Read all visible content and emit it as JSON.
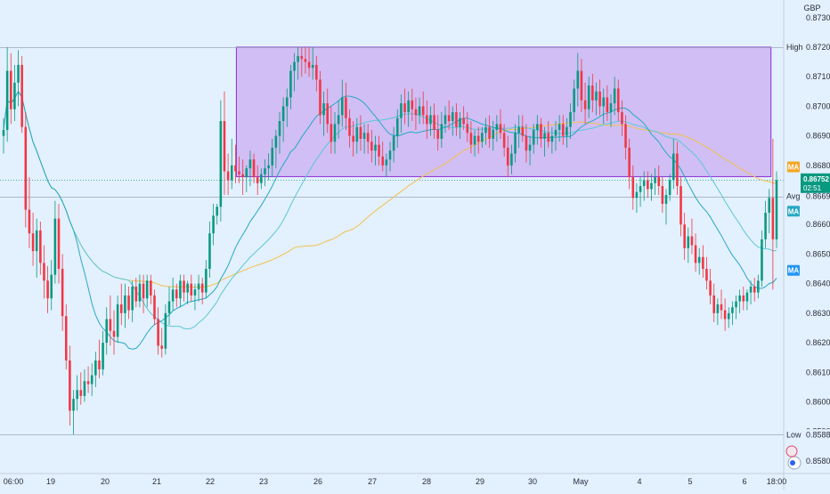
{
  "chart_data": {
    "type": "candlestick",
    "currency": "GBP",
    "xaxis": {
      "ticks": [
        "06:00",
        "19",
        "20",
        "21",
        "22",
        "23",
        "26",
        "27",
        "28",
        "29",
        "30",
        "May",
        "4",
        "5",
        "6",
        "18:00"
      ]
    },
    "yaxis": {
      "range": [
        0.8575,
        0.8737
      ],
      "ticks": [
        "0.87300",
        "0.87200",
        "0.87100",
        "0.87000",
        "0.86900",
        "0.86800",
        "0.86700",
        "0.86600",
        "0.86500",
        "0.86400",
        "0.86300",
        "0.86200",
        "0.86100",
        "0.86000",
        "0.85900",
        "0.85800"
      ]
    },
    "levels": {
      "high": {
        "label": "High",
        "value": "0.87200",
        "price": 0.872
      },
      "avg": {
        "label": "Avg",
        "value": "0.86695",
        "price": 0.86695
      },
      "low": {
        "label": "Low",
        "value": "0.85889",
        "price": 0.85889
      },
      "last": {
        "value": "0.86752",
        "countdown": "02:51",
        "price": 0.86752
      }
    },
    "ma_badges": [
      {
        "label": "MA",
        "price": 0.86795,
        "color": "#f5a623"
      },
      {
        "label": "MA",
        "price": 0.86645,
        "color": "#26a9c4"
      },
      {
        "label": "MA",
        "price": 0.86445,
        "color": "#2196f3"
      }
    ],
    "range_box": {
      "from_index": 63,
      "to_index": 208,
      "top": 0.872,
      "bottom": 0.86762
    },
    "colors": {
      "up": "#089981",
      "down": "#f23645",
      "ma_fast": "#26a9c4",
      "ma_mid": "#5bc8d6",
      "ma_slow": "#f2c14e",
      "box_fill": "#c9aef0",
      "box_edge": "#8e2fd6"
    },
    "ohlc": [
      [
        0.869,
        0.8696,
        0.8684,
        0.8692
      ],
      [
        0.8692,
        0.872,
        0.8688,
        0.8712
      ],
      [
        0.8712,
        0.8718,
        0.8694,
        0.8699
      ],
      [
        0.8699,
        0.8714,
        0.8695,
        0.8708
      ],
      [
        0.8708,
        0.8719,
        0.87,
        0.8714
      ],
      [
        0.8714,
        0.8717,
        0.8691,
        0.8693
      ],
      [
        0.8693,
        0.8698,
        0.8659,
        0.8665
      ],
      [
        0.8665,
        0.8676,
        0.8652,
        0.8657
      ],
      [
        0.8657,
        0.8664,
        0.8646,
        0.8651
      ],
      [
        0.8651,
        0.8662,
        0.8642,
        0.8658
      ],
      [
        0.8658,
        0.8661,
        0.8643,
        0.8647
      ],
      [
        0.8647,
        0.8653,
        0.8635,
        0.8641
      ],
      [
        0.8641,
        0.8646,
        0.863,
        0.8635
      ],
      [
        0.8635,
        0.8648,
        0.8631,
        0.8643
      ],
      [
        0.8643,
        0.8668,
        0.864,
        0.8662
      ],
      [
        0.8662,
        0.8667,
        0.864,
        0.8645
      ],
      [
        0.8645,
        0.865,
        0.8624,
        0.8629
      ],
      [
        0.8629,
        0.8633,
        0.8611,
        0.8614
      ],
      [
        0.8614,
        0.8619,
        0.8592,
        0.8597
      ],
      [
        0.8597,
        0.8604,
        0.8589,
        0.8601
      ],
      [
        0.8601,
        0.8609,
        0.8597,
        0.8604
      ],
      [
        0.8604,
        0.861,
        0.8599,
        0.8602
      ],
      [
        0.8602,
        0.8611,
        0.86,
        0.8607
      ],
      [
        0.8607,
        0.8612,
        0.8603,
        0.8606
      ],
      [
        0.8606,
        0.8613,
        0.8602,
        0.8609
      ],
      [
        0.8609,
        0.8617,
        0.8605,
        0.8614
      ],
      [
        0.8614,
        0.8621,
        0.8608,
        0.8611
      ],
      [
        0.8611,
        0.8624,
        0.8609,
        0.862
      ],
      [
        0.862,
        0.8632,
        0.8616,
        0.8628
      ],
      [
        0.8628,
        0.8636,
        0.8619,
        0.8624
      ],
      [
        0.8624,
        0.8631,
        0.8616,
        0.8622
      ],
      [
        0.8622,
        0.8636,
        0.862,
        0.8633
      ],
      [
        0.8633,
        0.864,
        0.8626,
        0.863
      ],
      [
        0.863,
        0.864,
        0.8625,
        0.8636
      ],
      [
        0.8636,
        0.8639,
        0.8628,
        0.8631
      ],
      [
        0.8631,
        0.8641,
        0.8627,
        0.8639
      ],
      [
        0.8639,
        0.8642,
        0.8632,
        0.8634
      ],
      [
        0.8634,
        0.8643,
        0.8632,
        0.864
      ],
      [
        0.864,
        0.8643,
        0.863,
        0.8635
      ],
      [
        0.8635,
        0.8643,
        0.8632,
        0.8641
      ],
      [
        0.8641,
        0.8643,
        0.8633,
        0.8636
      ],
      [
        0.8636,
        0.8638,
        0.8626,
        0.8628
      ],
      [
        0.8628,
        0.8632,
        0.8616,
        0.8619
      ],
      [
        0.8619,
        0.8625,
        0.8615,
        0.8618
      ],
      [
        0.8618,
        0.8633,
        0.8616,
        0.863
      ],
      [
        0.863,
        0.8639,
        0.8626,
        0.8634
      ],
      [
        0.8634,
        0.8642,
        0.8631,
        0.8638
      ],
      [
        0.8638,
        0.864,
        0.8632,
        0.8635
      ],
      [
        0.8635,
        0.8643,
        0.8632,
        0.8641
      ],
      [
        0.8641,
        0.8643,
        0.8634,
        0.8637
      ],
      [
        0.8637,
        0.8641,
        0.8633,
        0.864
      ],
      [
        0.864,
        0.8643,
        0.8634,
        0.8636
      ],
      [
        0.8636,
        0.864,
        0.8631,
        0.8638
      ],
      [
        0.8638,
        0.8643,
        0.8634,
        0.864
      ],
      [
        0.864,
        0.8642,
        0.8633,
        0.8637
      ],
      [
        0.8637,
        0.8648,
        0.8635,
        0.8645
      ],
      [
        0.8645,
        0.8661,
        0.8642,
        0.8657
      ],
      [
        0.8657,
        0.8667,
        0.8653,
        0.8663
      ],
      [
        0.8663,
        0.8667,
        0.866,
        0.8666
      ],
      [
        0.8666,
        0.8702,
        0.8661,
        0.8695
      ],
      [
        0.8695,
        0.8705,
        0.867,
        0.8678
      ],
      [
        0.8678,
        0.8684,
        0.867,
        0.8675
      ],
      [
        0.8675,
        0.8689,
        0.8672,
        0.868
      ],
      [
        0.868,
        0.8687,
        0.8674,
        0.8678
      ],
      [
        0.8678,
        0.8683,
        0.8674,
        0.8677
      ],
      [
        0.8677,
        0.8682,
        0.867,
        0.8676
      ],
      [
        0.8676,
        0.868,
        0.8671,
        0.8679
      ],
      [
        0.8679,
        0.8685,
        0.8673,
        0.8682
      ],
      [
        0.8682,
        0.8684,
        0.8674,
        0.8676
      ],
      [
        0.8676,
        0.868,
        0.867,
        0.8674
      ],
      [
        0.8674,
        0.8679,
        0.8672,
        0.8677
      ],
      [
        0.8677,
        0.8682,
        0.8673,
        0.8679
      ],
      [
        0.8679,
        0.8684,
        0.8675,
        0.868
      ],
      [
        0.868,
        0.8689,
        0.8676,
        0.8686
      ],
      [
        0.8686,
        0.8692,
        0.8679,
        0.869
      ],
      [
        0.869,
        0.8698,
        0.8684,
        0.8695
      ],
      [
        0.8695,
        0.8703,
        0.8688,
        0.87
      ],
      [
        0.87,
        0.8706,
        0.8693,
        0.8703
      ],
      [
        0.8703,
        0.8714,
        0.8699,
        0.8712
      ],
      [
        0.8712,
        0.8718,
        0.8705,
        0.8715
      ],
      [
        0.8715,
        0.872,
        0.8709,
        0.8717
      ],
      [
        0.8717,
        0.872,
        0.871,
        0.8716
      ],
      [
        0.8716,
        0.872,
        0.8711,
        0.8715
      ],
      [
        0.8715,
        0.872,
        0.871,
        0.8713
      ],
      [
        0.8713,
        0.872,
        0.8709,
        0.8714
      ],
      [
        0.8714,
        0.8717,
        0.8705,
        0.8709
      ],
      [
        0.8709,
        0.8712,
        0.8694,
        0.8697
      ],
      [
        0.8697,
        0.8705,
        0.869,
        0.8701
      ],
      [
        0.8701,
        0.8706,
        0.8691,
        0.8694
      ],
      [
        0.8694,
        0.87,
        0.8684,
        0.8688
      ],
      [
        0.8688,
        0.8698,
        0.8684,
        0.8694
      ],
      [
        0.8694,
        0.8702,
        0.8689,
        0.8697
      ],
      [
        0.8697,
        0.8709,
        0.8693,
        0.8703
      ],
      [
        0.8703,
        0.8708,
        0.8692,
        0.8696
      ],
      [
        0.8696,
        0.8699,
        0.8686,
        0.869
      ],
      [
        0.869,
        0.8695,
        0.8683,
        0.8688
      ],
      [
        0.8688,
        0.8696,
        0.8684,
        0.8693
      ],
      [
        0.8693,
        0.8697,
        0.8685,
        0.8689
      ],
      [
        0.8689,
        0.8694,
        0.8684,
        0.8691
      ],
      [
        0.8691,
        0.8694,
        0.8684,
        0.8688
      ],
      [
        0.8688,
        0.8692,
        0.8681,
        0.8685
      ],
      [
        0.8685,
        0.869,
        0.868,
        0.8687
      ],
      [
        0.8687,
        0.869,
        0.868,
        0.8683
      ],
      [
        0.8683,
        0.8688,
        0.8678,
        0.868
      ],
      [
        0.868,
        0.8684,
        0.8676,
        0.8682
      ],
      [
        0.8682,
        0.8688,
        0.8678,
        0.8685
      ],
      [
        0.8685,
        0.8693,
        0.8681,
        0.869
      ],
      [
        0.869,
        0.8699,
        0.8686,
        0.8696
      ],
      [
        0.8696,
        0.8704,
        0.8691,
        0.8701
      ],
      [
        0.8701,
        0.8706,
        0.8694,
        0.8698
      ],
      [
        0.8698,
        0.8705,
        0.8693,
        0.8702
      ],
      [
        0.8702,
        0.8706,
        0.8695,
        0.8699
      ],
      [
        0.8699,
        0.8703,
        0.8692,
        0.8697
      ],
      [
        0.8697,
        0.8703,
        0.8694,
        0.87
      ],
      [
        0.87,
        0.8705,
        0.8694,
        0.8697
      ],
      [
        0.8697,
        0.8702,
        0.8689,
        0.8694
      ],
      [
        0.8694,
        0.87,
        0.869,
        0.8697
      ],
      [
        0.8697,
        0.8701,
        0.8689,
        0.8692
      ],
      [
        0.8692,
        0.8697,
        0.8685,
        0.8689
      ],
      [
        0.8689,
        0.8698,
        0.8686,
        0.8694
      ],
      [
        0.8694,
        0.87,
        0.8691,
        0.8697
      ],
      [
        0.8697,
        0.8702,
        0.8692,
        0.8695
      ],
      [
        0.8695,
        0.87,
        0.869,
        0.8698
      ],
      [
        0.8698,
        0.8701,
        0.869,
        0.8693
      ],
      [
        0.8693,
        0.8698,
        0.8689,
        0.8696
      ],
      [
        0.8696,
        0.87,
        0.8692,
        0.8694
      ],
      [
        0.8694,
        0.8698,
        0.8688,
        0.8691
      ],
      [
        0.8691,
        0.8695,
        0.8684,
        0.8687
      ],
      [
        0.8687,
        0.8692,
        0.8683,
        0.869
      ],
      [
        0.869,
        0.8693,
        0.8684,
        0.8688
      ],
      [
        0.8688,
        0.8693,
        0.8686,
        0.8691
      ],
      [
        0.8691,
        0.8696,
        0.8687,
        0.8693
      ],
      [
        0.8693,
        0.8697,
        0.8686,
        0.8689
      ],
      [
        0.8689,
        0.8695,
        0.8685,
        0.8692
      ],
      [
        0.8692,
        0.8697,
        0.8688,
        0.8694
      ],
      [
        0.8694,
        0.8699,
        0.8689,
        0.8691
      ],
      [
        0.8691,
        0.8694,
        0.8683,
        0.8686
      ],
      [
        0.8686,
        0.869,
        0.8676,
        0.868
      ],
      [
        0.868,
        0.8687,
        0.8677,
        0.8684
      ],
      [
        0.8684,
        0.8694,
        0.8681,
        0.8691
      ],
      [
        0.8691,
        0.8697,
        0.8686,
        0.8693
      ],
      [
        0.8693,
        0.8697,
        0.8688,
        0.869
      ],
      [
        0.869,
        0.8694,
        0.8681,
        0.8685
      ],
      [
        0.8685,
        0.869,
        0.868,
        0.8687
      ],
      [
        0.8687,
        0.8694,
        0.8684,
        0.8692
      ],
      [
        0.8692,
        0.8697,
        0.8687,
        0.8694
      ],
      [
        0.8694,
        0.8696,
        0.8686,
        0.8689
      ],
      [
        0.8689,
        0.8693,
        0.8683,
        0.8691
      ],
      [
        0.8691,
        0.8695,
        0.8686,
        0.8688
      ],
      [
        0.8688,
        0.8693,
        0.8684,
        0.869
      ],
      [
        0.869,
        0.8695,
        0.8685,
        0.8692
      ],
      [
        0.8692,
        0.8697,
        0.8688,
        0.8694
      ],
      [
        0.8694,
        0.8697,
        0.8687,
        0.869
      ],
      [
        0.869,
        0.8696,
        0.8686,
        0.8693
      ],
      [
        0.8693,
        0.8701,
        0.8689,
        0.8698
      ],
      [
        0.8698,
        0.8709,
        0.8695,
        0.8706
      ],
      [
        0.8706,
        0.8718,
        0.87,
        0.8712
      ],
      [
        0.8712,
        0.8716,
        0.8698,
        0.8702
      ],
      [
        0.8702,
        0.8708,
        0.8694,
        0.8699
      ],
      [
        0.8699,
        0.871,
        0.8696,
        0.8707
      ],
      [
        0.8707,
        0.8711,
        0.8698,
        0.8702
      ],
      [
        0.8702,
        0.8708,
        0.8697,
        0.8705
      ],
      [
        0.8705,
        0.8709,
        0.8697,
        0.87
      ],
      [
        0.87,
        0.8706,
        0.8694,
        0.8703
      ],
      [
        0.8703,
        0.8707,
        0.8695,
        0.8698
      ],
      [
        0.8698,
        0.8704,
        0.8693,
        0.8701
      ],
      [
        0.8701,
        0.871,
        0.8697,
        0.8706
      ],
      [
        0.8706,
        0.8709,
        0.8695,
        0.8698
      ],
      [
        0.8698,
        0.8702,
        0.869,
        0.8694
      ],
      [
        0.8694,
        0.8697,
        0.8682,
        0.8686
      ],
      [
        0.8686,
        0.8689,
        0.8672,
        0.8676
      ],
      [
        0.8676,
        0.868,
        0.8665,
        0.8669
      ],
      [
        0.8669,
        0.8674,
        0.8664,
        0.8671
      ],
      [
        0.8671,
        0.8676,
        0.8666,
        0.8673
      ],
      [
        0.8673,
        0.8678,
        0.8668,
        0.8675
      ],
      [
        0.8675,
        0.8678,
        0.8669,
        0.8672
      ],
      [
        0.8672,
        0.8677,
        0.8668,
        0.8674
      ],
      [
        0.8674,
        0.8679,
        0.867,
        0.8676
      ],
      [
        0.8676,
        0.868,
        0.867,
        0.8673
      ],
      [
        0.8673,
        0.8676,
        0.8664,
        0.8667
      ],
      [
        0.8667,
        0.8672,
        0.866,
        0.867
      ],
      [
        0.867,
        0.8677,
        0.8668,
        0.8675
      ],
      [
        0.8675,
        0.8689,
        0.8672,
        0.8684
      ],
      [
        0.8684,
        0.8688,
        0.867,
        0.8673
      ],
      [
        0.8673,
        0.8676,
        0.8656,
        0.866
      ],
      [
        0.866,
        0.8664,
        0.8648,
        0.8652
      ],
      [
        0.8652,
        0.8659,
        0.8647,
        0.8656
      ],
      [
        0.8656,
        0.8662,
        0.865,
        0.8653
      ],
      [
        0.8653,
        0.8657,
        0.8644,
        0.8647
      ],
      [
        0.8647,
        0.8652,
        0.8643,
        0.8649
      ],
      [
        0.8649,
        0.8653,
        0.8642,
        0.8645
      ],
      [
        0.8645,
        0.8649,
        0.8638,
        0.8641
      ],
      [
        0.8641,
        0.8645,
        0.8633,
        0.8636
      ],
      [
        0.8636,
        0.864,
        0.8627,
        0.863
      ],
      [
        0.863,
        0.8635,
        0.8626,
        0.8633
      ],
      [
        0.8633,
        0.8638,
        0.8628,
        0.8631
      ],
      [
        0.8631,
        0.8635,
        0.8624,
        0.8628
      ],
      [
        0.8628,
        0.8632,
        0.8625,
        0.863
      ],
      [
        0.863,
        0.8634,
        0.8626,
        0.8632
      ],
      [
        0.8632,
        0.8636,
        0.8628,
        0.8634
      ],
      [
        0.8634,
        0.8638,
        0.863,
        0.8636
      ],
      [
        0.8636,
        0.8639,
        0.8631,
        0.8634
      ],
      [
        0.8634,
        0.8638,
        0.8631,
        0.8637
      ],
      [
        0.8637,
        0.8641,
        0.8633,
        0.8639
      ],
      [
        0.8639,
        0.8642,
        0.8634,
        0.8637
      ],
      [
        0.8637,
        0.8643,
        0.8635,
        0.8641
      ],
      [
        0.8641,
        0.8658,
        0.8639,
        0.8655
      ],
      [
        0.8655,
        0.8668,
        0.8652,
        0.8664
      ],
      [
        0.8664,
        0.8672,
        0.8657,
        0.8669
      ],
      [
        0.8669,
        0.8689,
        0.8638,
        0.8655
      ],
      [
        0.8655,
        0.8678,
        0.8652,
        0.8675
      ]
    ]
  }
}
